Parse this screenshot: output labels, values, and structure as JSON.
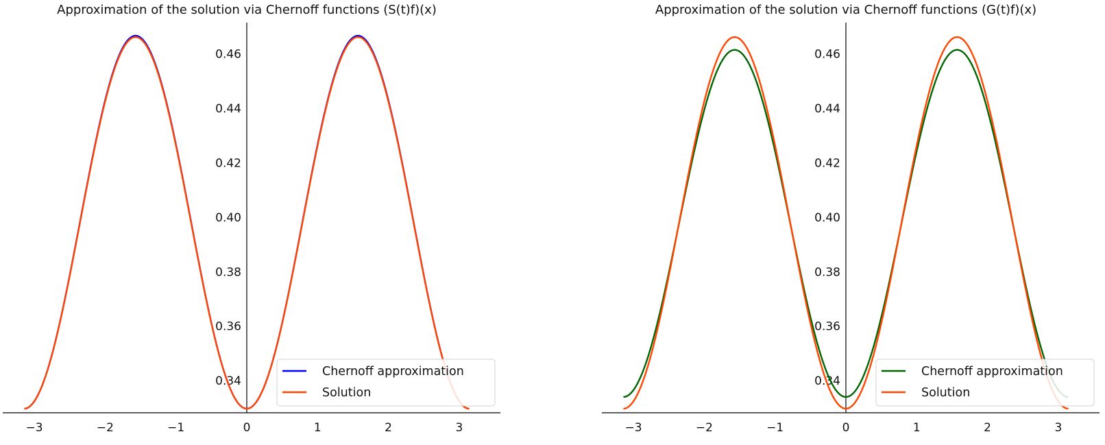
{
  "chart_data": [
    {
      "type": "line",
      "title": "Approximation of the solution via Chernoff functions (S(t)f)(x)",
      "xlabel": "",
      "ylabel": "",
      "xlim": [
        -3.45,
        3.45
      ],
      "ylim": [
        0.3282,
        0.4715
      ],
      "x_ticks": [
        -3,
        -2,
        -1,
        0,
        1,
        2,
        3
      ],
      "x_tick_labels": [
        "−3",
        "−2",
        "−1",
        "0",
        "1",
        "2",
        "3"
      ],
      "y_ticks": [
        0.34,
        0.36,
        0.38,
        0.4,
        0.42,
        0.44,
        0.46
      ],
      "y_tick_labels": [
        "0.34",
        "0.36",
        "0.38",
        "0.40",
        "0.42",
        "0.44",
        "0.46"
      ],
      "x_sample_range": [
        -3.14159,
        3.14159
      ],
      "series": [
        {
          "name": "Chernoff approximation",
          "color": "#0000ff",
          "formula": "a + b*sin(x)^2",
          "a": 0.3297,
          "b": 0.137
        },
        {
          "name": "Solution",
          "color": "#ff4500",
          "formula": "a + b*sin(x)^2",
          "a": 0.3297,
          "b": 0.1365
        }
      ],
      "legend": {
        "position": "lower-right",
        "entries": [
          "Chernoff approximation",
          "Solution"
        ]
      }
    },
    {
      "type": "line",
      "title": "Approximation of the solution via Chernoff functions (G(t)f)(x)",
      "xlabel": "",
      "ylabel": "",
      "xlim": [
        -3.45,
        3.45
      ],
      "ylim": [
        0.3282,
        0.4715
      ],
      "x_ticks": [
        -3,
        -2,
        -1,
        0,
        1,
        2,
        3
      ],
      "x_tick_labels": [
        "−3",
        "−2",
        "−1",
        "0",
        "1",
        "2",
        "3"
      ],
      "y_ticks": [
        0.34,
        0.36,
        0.38,
        0.4,
        0.42,
        0.44,
        0.46
      ],
      "y_tick_labels": [
        "0.34",
        "0.36",
        "0.38",
        "0.40",
        "0.42",
        "0.44",
        "0.46"
      ],
      "x_sample_range": [
        -3.14159,
        3.14159
      ],
      "series": [
        {
          "name": "Chernoff approximation",
          "color": "#006400",
          "formula": "a + b*sin(x)^2",
          "a": 0.334,
          "b": 0.1275
        },
        {
          "name": "Solution",
          "color": "#ff4500",
          "formula": "a + b*sin(x)^2",
          "a": 0.3297,
          "b": 0.1365
        }
      ],
      "legend": {
        "position": "lower-right",
        "entries": [
          "Chernoff approximation",
          "Solution"
        ]
      }
    }
  ]
}
